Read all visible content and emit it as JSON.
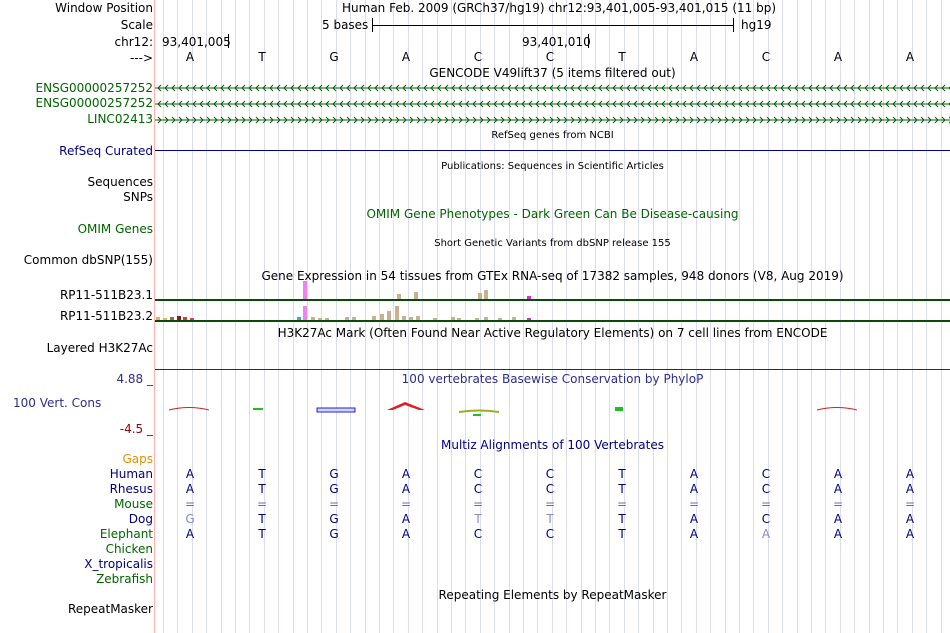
{
  "header": {
    "window_position_label": "Window Position",
    "window_position_text": "Human Feb. 2009 (GRCh37/hg19)   chr12:93,401,005-93,401,015 (11 bp)",
    "scale_label": "Scale",
    "scale_text": "5 bases",
    "assembly": "hg19",
    "chrom_label": "chr12:",
    "coord_left": "93,401,005",
    "coord_mid": "93,401,010",
    "strand_label": "--->"
  },
  "sequence": [
    "A",
    "T",
    "G",
    "A",
    "C",
    "C",
    "T",
    "A",
    "C",
    "A",
    "A"
  ],
  "tracks": {
    "gencode_title": "GENCODE V49lift37 (5 items filtered out)",
    "gencode_items": [
      {
        "name": "ENSG00000257252",
        "strand": "minus"
      },
      {
        "name": "ENSG00000257252",
        "strand": "minus"
      },
      {
        "name": "LINC02413",
        "strand": "plus"
      }
    ],
    "refseq_title": "RefSeq genes from NCBI",
    "refseq_label": "RefSeq Curated",
    "publications_title": "Publications: Sequences in Scientific Articles",
    "sequences_label": "Sequences",
    "snps_label": "SNPs",
    "omim_title": "OMIM Gene Phenotypes - Dark Green Can Be Disease-causing",
    "omim_label": "OMIM Genes",
    "dbsnp_title": "Short Genetic Variants from dbSNP release 155",
    "dbsnp_label": "Common dbSNP(155)",
    "gtex_title": "Gene Expression in 54 tissues from GTEx RNA-seq of 17382 samples, 948 donors (V8, Aug 2019)",
    "gtex_genes": [
      "RP11-511B23.1",
      "RP11-511B23.2"
    ],
    "h3k27ac_title": "H3K27Ac Mark (Often Found Near Active Regulatory Elements) on 7 cell lines from ENCODE",
    "h3k27ac_label": "Layered H3K27Ac",
    "cons_title": "100 vertebrates Basewise Conservation by PhyloP",
    "cons_label": "100 Vert. Cons",
    "cons_max": "4.88 _",
    "cons_min": "-4.5 _",
    "multiz_title": "Multiz Alignments of 100 Vertebrates",
    "repeat_title": "Repeating Elements by RepeatMasker",
    "repeat_label": "RepeatMasker"
  },
  "alignment": {
    "gaps_label": "Gaps",
    "species": [
      {
        "name": "Human",
        "bases": [
          "A",
          "T",
          "G",
          "A",
          "C",
          "C",
          "T",
          "A",
          "C",
          "A",
          "A"
        ]
      },
      {
        "name": "Rhesus",
        "bases": [
          "A",
          "T",
          "G",
          "A",
          "C",
          "C",
          "T",
          "A",
          "C",
          "A",
          "A"
        ]
      },
      {
        "name": "Mouse",
        "bases": [
          "=",
          "=",
          "=",
          "=",
          "=",
          "=",
          "=",
          "=",
          "=",
          "=",
          "="
        ]
      },
      {
        "name": "Dog",
        "bases": [
          "G",
          "T",
          "G",
          "A",
          "T",
          "T",
          "T",
          "A",
          "C",
          "A",
          "A"
        ]
      },
      {
        "name": "Elephant",
        "bases": [
          "A",
          "T",
          "G",
          "A",
          "C",
          "C",
          "T",
          "A",
          "A",
          "A",
          "A"
        ]
      },
      {
        "name": "Chicken",
        "bases": []
      },
      {
        "name": "X_tropicalis",
        "bases": []
      },
      {
        "name": "Zebrafish",
        "bases": []
      }
    ]
  },
  "colors": {
    "label_green": "#006400",
    "label_navy": "#000080",
    "gaps_orange": "#e09000",
    "cons_navy": "#2e2e8a",
    "red_line": "#9a0000"
  }
}
